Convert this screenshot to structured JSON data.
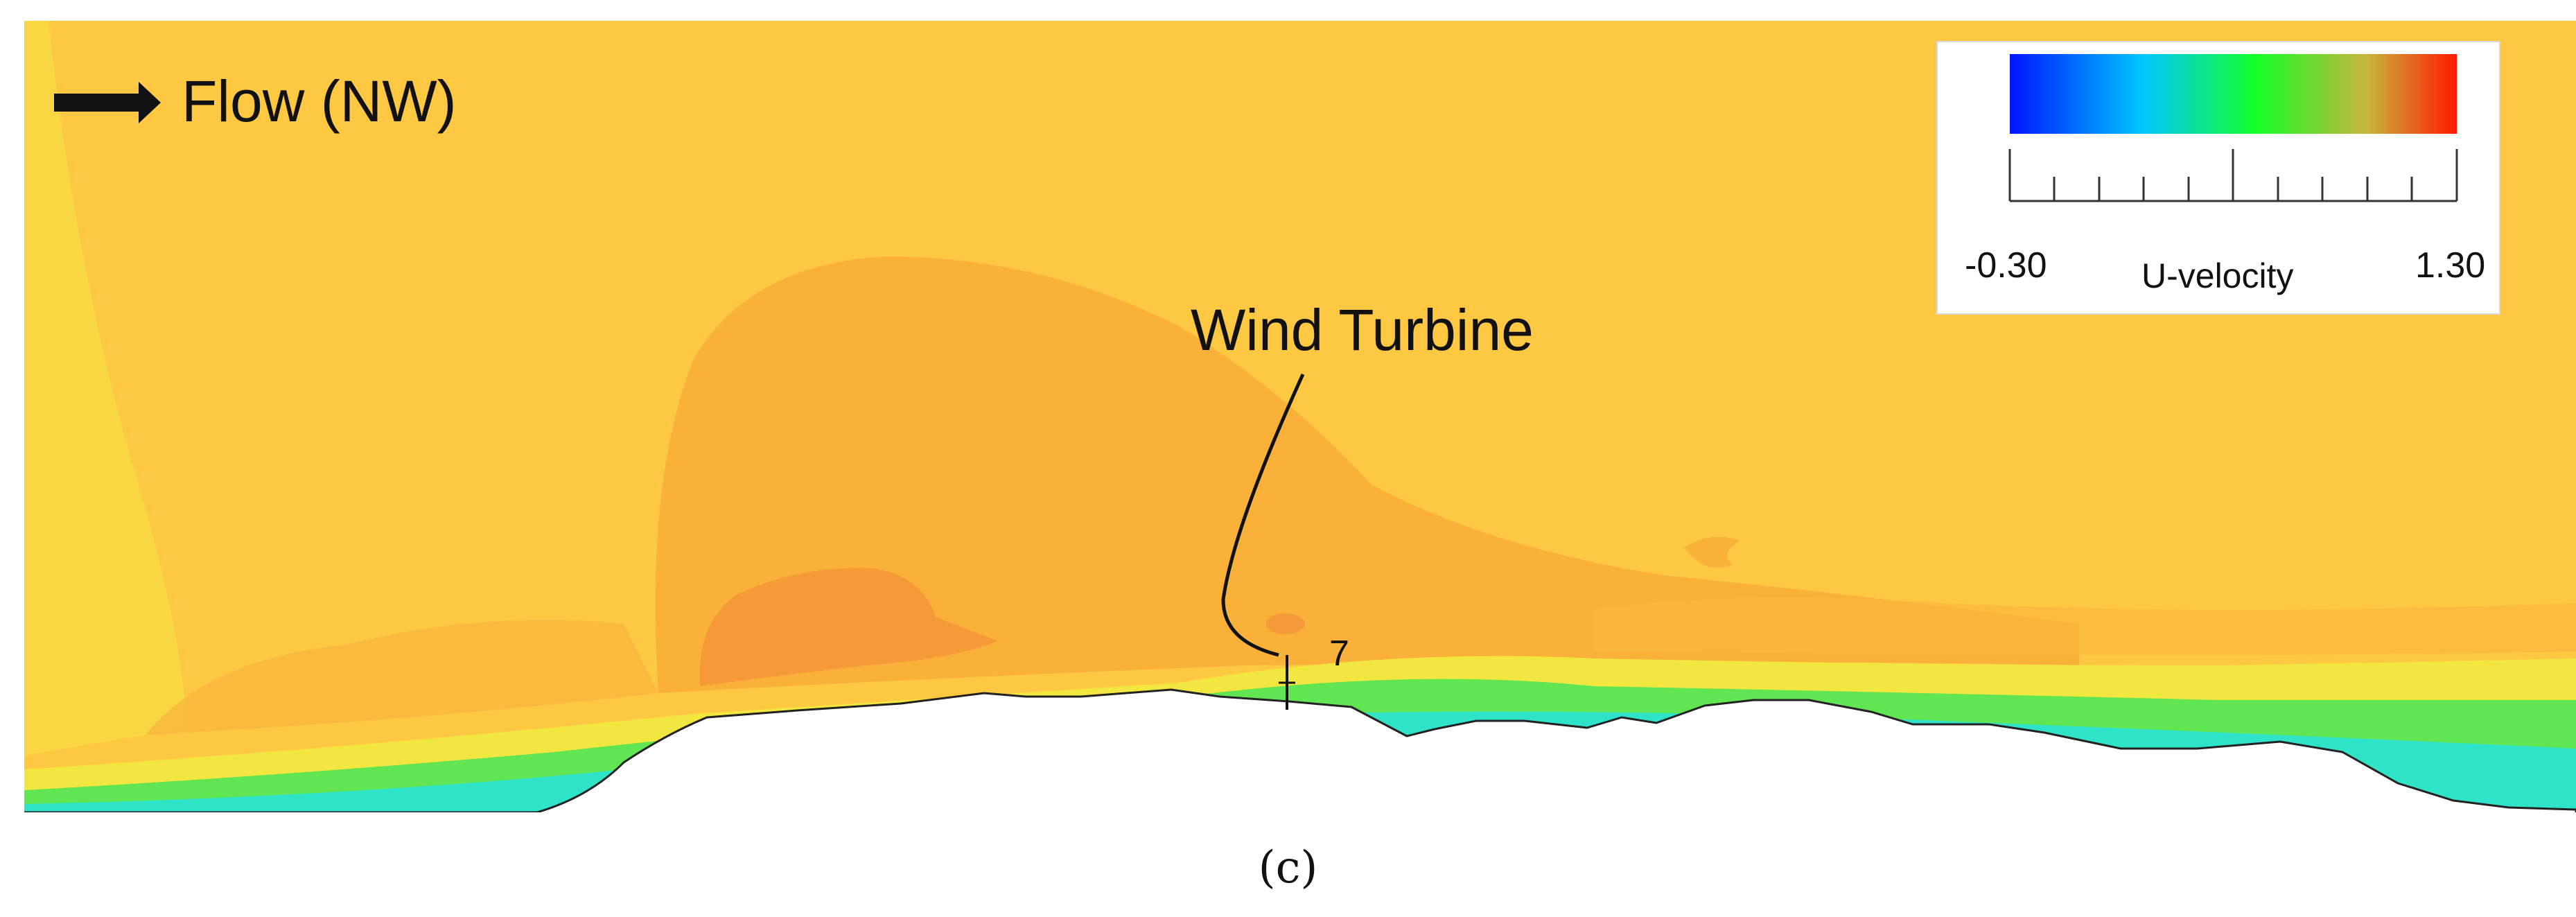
{
  "figure": {
    "flow_label": "Flow (NW)",
    "turbine_label": "Wind Turbine",
    "turbine_number": "7",
    "caption": "(c)"
  },
  "legend": {
    "min_label": "-0.30",
    "max_label": "1.30",
    "variable_label": "U-velocity",
    "min_value": -0.3,
    "max_value": 1.3,
    "colors": [
      "#0015ff",
      "#00c8ff",
      "#14ff28",
      "#c8b43c",
      "#ff1a00"
    ]
  },
  "colors": {
    "free_stream": "#FFC842",
    "wake_region": "#F9B13A",
    "low_speed_core": "#F69A39",
    "near_wall_yellow": "#F2E640",
    "near_wall_green": "#3BE05A",
    "near_wall_cyan": "#12E8E0",
    "terrain": "#ffffff"
  }
}
